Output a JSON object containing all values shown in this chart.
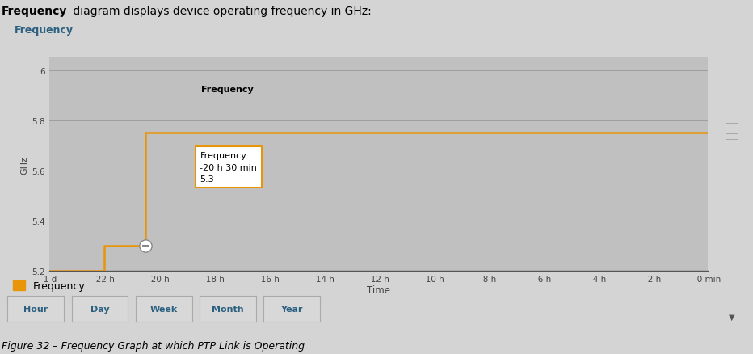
{
  "title": "Frequency",
  "ylabel": "GHz",
  "xlabel": "Time",
  "figure_caption": "Figure 32 – Frequency Graph at which PTP Link is Operating",
  "bg_color": "#c8c8c8",
  "plot_bg_color": "#c0c0c0",
  "line_color": "#e8950a",
  "line_width": 1.8,
  "ylim": [
    5.2,
    6.05
  ],
  "yticks": [
    5.2,
    5.4,
    5.6,
    5.8,
    6.0
  ],
  "ytick_labels": [
    "5.2",
    "5.4",
    "5.6",
    "5.8",
    "6"
  ],
  "xtick_labels": [
    "-1 d",
    "-22 h",
    "-20 h",
    "-18 h",
    "-16 h",
    "-14 h",
    "-12 h",
    "-10 h",
    "-8 h",
    "-6 h",
    "-4 h",
    "-2 h",
    "-0 min"
  ],
  "xtick_positions": [
    0,
    2,
    4,
    6,
    8,
    10,
    12,
    14,
    16,
    18,
    20,
    22,
    24
  ],
  "x_data": [
    0,
    2,
    2,
    3.5,
    3.5,
    4,
    4,
    24
  ],
  "y_data": [
    5.2,
    5.2,
    5.3,
    5.3,
    5.75,
    5.75,
    5.75,
    5.75
  ],
  "tooltip_x": 3.5,
  "tooltip_y": 5.3,
  "tooltip_title": "Frequency",
  "tooltip_line2": "-20 h 30 min",
  "tooltip_line3": "5.3",
  "legend_color": "#e8950a",
  "legend_label": "Frequency",
  "buttons": [
    "Hour",
    "Day",
    "Week",
    "Month",
    "Year"
  ],
  "title_color": "#2b6080",
  "tick_color": "#444444",
  "grid_color": "#aaaaaa",
  "tooltip_border_color": "#e8950a",
  "scrollbar_color": "#bbbbbb"
}
